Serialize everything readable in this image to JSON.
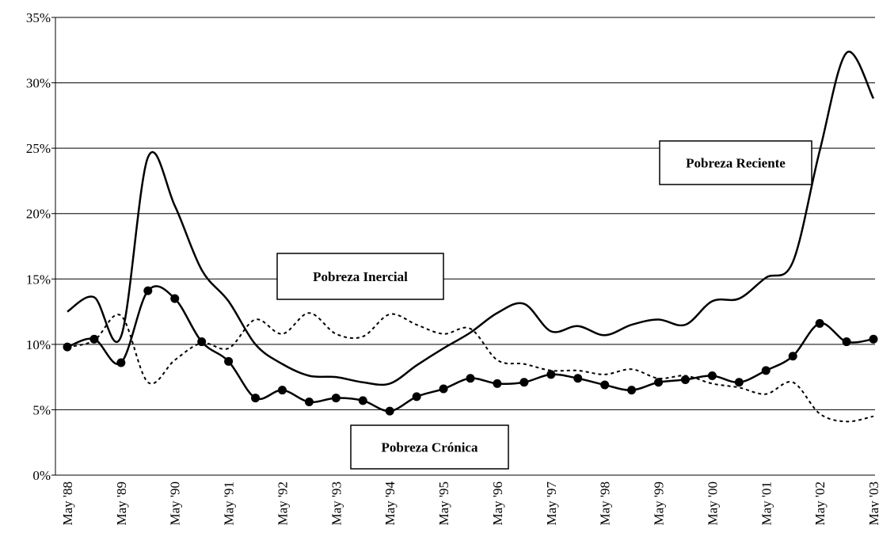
{
  "chart_data": {
    "type": "line",
    "categories": [
      "May '88",
      null,
      "May '89",
      null,
      "May '90",
      null,
      "May '91",
      null,
      "May '92",
      null,
      "May '93",
      null,
      "May '94",
      null,
      "May '95",
      null,
      "May '96",
      null,
      "May '97",
      null,
      "May '98",
      null,
      "May '99",
      null,
      "May '00",
      null,
      "May '01",
      null,
      "May '02",
      null,
      "May '03"
    ],
    "series": [
      {
        "name": "Pobreza Reciente",
        "color": "#000000",
        "line_style": "solid",
        "marker": false,
        "values": [
          12.5,
          13.6,
          10.6,
          24.3,
          20.6,
          15.7,
          13.3,
          10.0,
          8.5,
          7.6,
          7.5,
          7.1,
          7.0,
          8.4,
          9.7,
          10.9,
          12.4,
          13.1,
          11.0,
          11.4,
          10.7,
          11.5,
          11.9,
          11.5,
          13.3,
          13.5,
          15.1,
          16.3,
          24.8,
          32.3,
          28.8
        ]
      },
      {
        "name": "Pobreza Inercial",
        "color": "#000000",
        "line_style": "dashed",
        "marker": false,
        "values": [
          9.8,
          10.3,
          12.2,
          7.1,
          8.8,
          10.1,
          9.7,
          11.9,
          10.8,
          12.4,
          10.8,
          10.6,
          12.3,
          11.5,
          10.8,
          11.2,
          8.8,
          8.5,
          8.0,
          8.0,
          7.7,
          8.1,
          7.4,
          7.6,
          7.0,
          6.7,
          6.2,
          7.1,
          4.7,
          4.1,
          4.5
        ]
      },
      {
        "name": "Pobreza Crónica",
        "color": "#000000",
        "line_style": "solid",
        "marker": true,
        "values": [
          9.8,
          10.4,
          8.6,
          14.1,
          13.5,
          10.2,
          8.7,
          5.9,
          6.5,
          5.6,
          5.9,
          5.7,
          4.9,
          6.0,
          6.6,
          7.4,
          7.0,
          7.1,
          7.7,
          7.4,
          6.9,
          6.5,
          7.1,
          7.3,
          7.6,
          7.1,
          8.0,
          9.1,
          11.6,
          10.2,
          10.4
        ]
      }
    ],
    "ylim": [
      0,
      35
    ],
    "yticks": [
      {
        "value": 0,
        "label": "0%"
      },
      {
        "value": 5,
        "label": "5%"
      },
      {
        "value": 10,
        "label": "10%"
      },
      {
        "value": 15,
        "label": "15%"
      },
      {
        "value": 20,
        "label": "20%"
      },
      {
        "value": 25,
        "label": "25%"
      },
      {
        "value": 30,
        "label": "30%"
      },
      {
        "value": 35,
        "label": "35%"
      }
    ],
    "grid": true
  }
}
